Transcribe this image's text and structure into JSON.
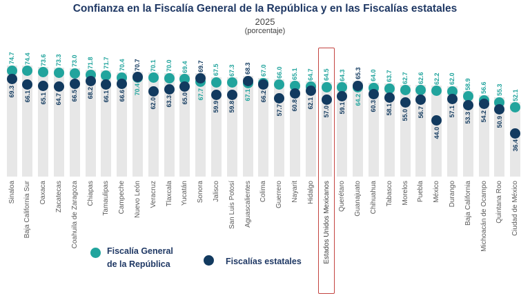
{
  "header": {
    "title": "Confianza en la Fiscalía General de la República y en las Fiscalías estatales",
    "year": "2025",
    "unit": "(porcentaje)"
  },
  "legend": {
    "fgr": {
      "line1": "Fiscalía General",
      "line2": "de la República"
    },
    "estatales": {
      "label": "Fiscalías estatales"
    }
  },
  "colors": {
    "fgr": "#21A49D",
    "estatales": "#123A5F",
    "title_text": "#1F3864",
    "bar": "#E7E7E7",
    "highlight_box": "#C3423F",
    "category_label": "#595959"
  },
  "chart_data": {
    "type": "scatter",
    "title": "Confianza en la Fiscalía General de la República y en las Fiscalías estatales",
    "subtitle": "2025",
    "unit": "(porcentaje)",
    "grid": false,
    "legend_position": "bottom",
    "ylim": [
      30,
      80
    ],
    "highlighted_category": "Estados Unidos Mexicanos",
    "categories": [
      "Sinaloa",
      "Baja California Sur",
      "Oaxaca",
      "Zacatecas",
      "Coahuila de Zaragoza",
      "Chiapas",
      "Tamaulipas",
      "Campeche",
      "Nuevo León",
      "Veracruz",
      "Tlaxcala",
      "Yucatán",
      "Sonora",
      "Jalisco",
      "San Luis Potosí",
      "Aguascalientes",
      "Colima",
      "Guerrero",
      "Nayarit",
      "Hidalgo",
      "Estados Unidos Mexicanos",
      "Querétaro",
      "Guanajuato",
      "Chihuahua",
      "Tabasco",
      "Morelos",
      "Puebla",
      "México",
      "Durango",
      "Baja California",
      "Michoacán de Ocampo",
      "Quintana Roo",
      "Ciudad de México"
    ],
    "series": [
      {
        "name": "Fiscalía General de la República",
        "color": "#21A49D",
        "values": [
          74.7,
          74.4,
          73.6,
          73.3,
          73.0,
          71.8,
          71.7,
          70.4,
          70.4,
          70.1,
          70.0,
          69.4,
          67.7,
          67.5,
          67.3,
          67.1,
          67.0,
          66.0,
          65.1,
          64.7,
          64.5,
          64.3,
          64.2,
          64.0,
          63.7,
          62.7,
          62.6,
          62.2,
          62.0,
          58.9,
          56.6,
          55.3,
          52.1
        ]
      },
      {
        "name": "Fiscalías estatales",
        "color": "#123A5F",
        "values": [
          69.3,
          66.1,
          65.1,
          64.7,
          66.5,
          68.2,
          66.1,
          66.6,
          70.7,
          62.0,
          63.3,
          65.0,
          69.7,
          59.9,
          59.8,
          68.3,
          66.2,
          57.7,
          60.8,
          62.1,
          57.0,
          59.1,
          65.3,
          60.3,
          58.1,
          55.0,
          56.7,
          44.0,
          57.1,
          53.3,
          54.2,
          50.9,
          36.4
        ]
      }
    ]
  }
}
